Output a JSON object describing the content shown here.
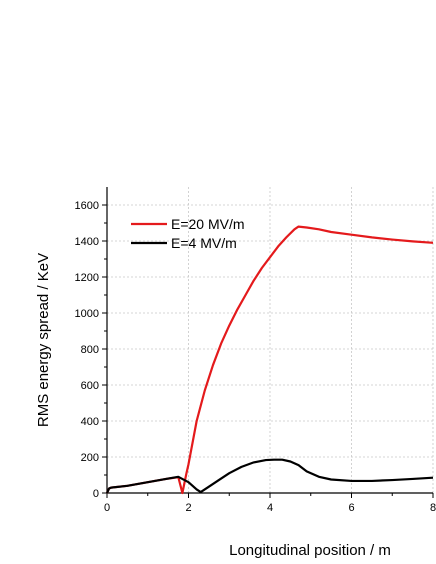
{
  "chart_data": {
    "type": "line",
    "title": "",
    "xlabel": "Longitudinal position / m",
    "ylabel": "RMS energy spread / KeV",
    "xlim": [
      0,
      8
    ],
    "ylim": [
      0,
      1700
    ],
    "x_ticks": [
      0,
      2,
      4,
      6,
      8
    ],
    "y_ticks": [
      0,
      200,
      400,
      600,
      800,
      1000,
      1200,
      1400,
      1600
    ],
    "grid": true,
    "legend_position": "top-left",
    "series": [
      {
        "name": "E=20 MV/m",
        "color": "#e41a1c",
        "x": [
          0,
          0.05,
          0.1,
          0.5,
          1.0,
          1.5,
          1.75,
          1.85,
          1.95,
          2.0,
          2.2,
          2.4,
          2.6,
          2.8,
          3.0,
          3.2,
          3.4,
          3.6,
          3.8,
          4.0,
          4.2,
          4.4,
          4.6,
          4.7,
          4.9,
          5.2,
          5.5,
          6.0,
          6.5,
          7.0,
          7.5,
          8.0
        ],
        "y": [
          0,
          25,
          30,
          40,
          60,
          80,
          88,
          0,
          110,
          160,
          400,
          570,
          710,
          830,
          930,
          1020,
          1100,
          1180,
          1250,
          1310,
          1370,
          1420,
          1465,
          1480,
          1475,
          1465,
          1450,
          1435,
          1420,
          1408,
          1398,
          1390
        ]
      },
      {
        "name": "E=4 MV/m",
        "color": "#000000",
        "x": [
          0,
          0.05,
          0.1,
          0.5,
          1.0,
          1.5,
          1.75,
          2.0,
          2.2,
          2.3,
          2.5,
          2.8,
          3.0,
          3.3,
          3.6,
          3.9,
          4.1,
          4.3,
          4.5,
          4.7,
          4.9,
          5.2,
          5.5,
          6.0,
          6.5,
          7.0,
          7.5,
          8.0
        ],
        "y": [
          0,
          25,
          30,
          40,
          60,
          80,
          90,
          60,
          20,
          5,
          35,
          80,
          110,
          145,
          170,
          183,
          185,
          185,
          175,
          155,
          120,
          90,
          75,
          67,
          67,
          72,
          78,
          85
        ]
      }
    ]
  }
}
